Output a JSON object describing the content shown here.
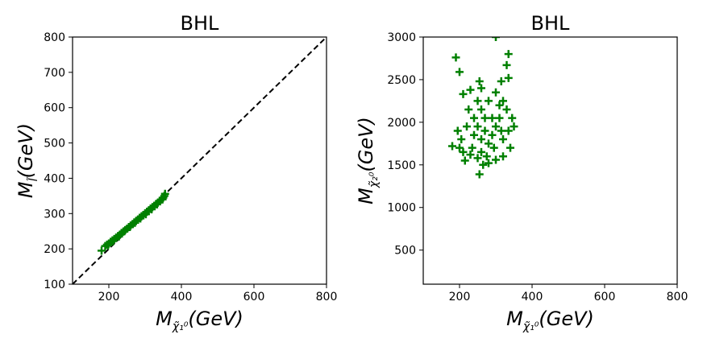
{
  "chart_data": [
    {
      "type": "scatter",
      "title": "BHL",
      "xlabel": {
        "base": "M",
        "sub": "χ̃₁⁰",
        "unit": "(GeV)"
      },
      "ylabel": {
        "base": "M",
        "sub": "l̃",
        "unit": "(GeV)"
      },
      "xlim": [
        100,
        800
      ],
      "ylim": [
        100,
        800
      ],
      "xticks": [
        200,
        400,
        600,
        800
      ],
      "yticks": [
        100,
        200,
        300,
        400,
        500,
        600,
        700,
        800
      ],
      "marker": "+",
      "color": "#008000",
      "reference_line": {
        "style": "dashed",
        "color": "#000000",
        "points": [
          [
            100,
            100
          ],
          [
            800,
            800
          ]
        ]
      },
      "points": [
        [
          180,
          195
        ],
        [
          190,
          208
        ],
        [
          195,
          212
        ],
        [
          200,
          215
        ],
        [
          205,
          220
        ],
        [
          210,
          224
        ],
        [
          215,
          228
        ],
        [
          220,
          232
        ],
        [
          225,
          236
        ],
        [
          230,
          240
        ],
        [
          235,
          245
        ],
        [
          240,
          249
        ],
        [
          245,
          253
        ],
        [
          250,
          257
        ],
        [
          255,
          262
        ],
        [
          260,
          266
        ],
        [
          265,
          270
        ],
        [
          270,
          275
        ],
        [
          275,
          279
        ],
        [
          280,
          283
        ],
        [
          285,
          288
        ],
        [
          290,
          292
        ],
        [
          295,
          296
        ],
        [
          300,
          301
        ],
        [
          305,
          305
        ],
        [
          310,
          309
        ],
        [
          315,
          314
        ],
        [
          320,
          318
        ],
        [
          325,
          322
        ],
        [
          330,
          327
        ],
        [
          335,
          331
        ],
        [
          340,
          336
        ],
        [
          345,
          340
        ],
        [
          350,
          345
        ],
        [
          353,
          350
        ],
        [
          355,
          356
        ],
        [
          198,
          210
        ],
        [
          212,
          222
        ],
        [
          228,
          235
        ],
        [
          243,
          250
        ],
        [
          258,
          262
        ],
        [
          272,
          274
        ],
        [
          287,
          286
        ],
        [
          302,
          298
        ],
        [
          318,
          312
        ],
        [
          333,
          326
        ],
        [
          348,
          340
        ]
      ]
    },
    {
      "type": "scatter",
      "title": "BHL",
      "xlabel": {
        "base": "M",
        "sub": "χ̃₁⁰",
        "unit": "(GeV)"
      },
      "ylabel": {
        "base": "M",
        "sub": "χ̃₂⁰",
        "unit": "(GeV)"
      },
      "xlim": [
        100,
        800
      ],
      "ylim": [
        100,
        3000
      ],
      "xticks": [
        200,
        400,
        600,
        800
      ],
      "yticks": [
        500,
        1000,
        1500,
        2000,
        2500,
        3000
      ],
      "marker": "+",
      "color": "#008000",
      "points": [
        [
          190,
          2760
        ],
        [
          200,
          2590
        ],
        [
          300,
          3000
        ],
        [
          335,
          2800
        ],
        [
          330,
          2670
        ],
        [
          335,
          2520
        ],
        [
          315,
          2480
        ],
        [
          255,
          2480
        ],
        [
          230,
          2380
        ],
        [
          210,
          2330
        ],
        [
          260,
          2400
        ],
        [
          300,
          2350
        ],
        [
          180,
          1720
        ],
        [
          200,
          1700
        ],
        [
          210,
          1650
        ],
        [
          230,
          1620
        ],
        [
          250,
          1580
        ],
        [
          265,
          1500
        ],
        [
          255,
          1390
        ],
        [
          280,
          1520
        ],
        [
          300,
          1560
        ],
        [
          320,
          1600
        ],
        [
          340,
          1700
        ],
        [
          350,
          1950
        ],
        [
          330,
          2150
        ],
        [
          320,
          2250
        ],
        [
          345,
          2050
        ],
        [
          195,
          1900
        ],
        [
          205,
          1800
        ],
        [
          220,
          1950
        ],
        [
          240,
          2050
        ],
        [
          260,
          2150
        ],
        [
          280,
          2250
        ],
        [
          310,
          2200
        ],
        [
          240,
          1850
        ],
        [
          260,
          1800
        ],
        [
          270,
          1900
        ],
        [
          250,
          1950
        ],
        [
          280,
          1750
        ],
        [
          290,
          1850
        ],
        [
          300,
          1950
        ],
        [
          315,
          1900
        ],
        [
          235,
          1700
        ],
        [
          260,
          1650
        ],
        [
          295,
          1700
        ],
        [
          320,
          1800
        ],
        [
          225,
          2150
        ],
        [
          250,
          2250
        ],
        [
          270,
          2050
        ],
        [
          290,
          2050
        ],
        [
          310,
          2050
        ],
        [
          215,
          1550
        ],
        [
          275,
          1600
        ],
        [
          335,
          1900
        ]
      ]
    }
  ]
}
